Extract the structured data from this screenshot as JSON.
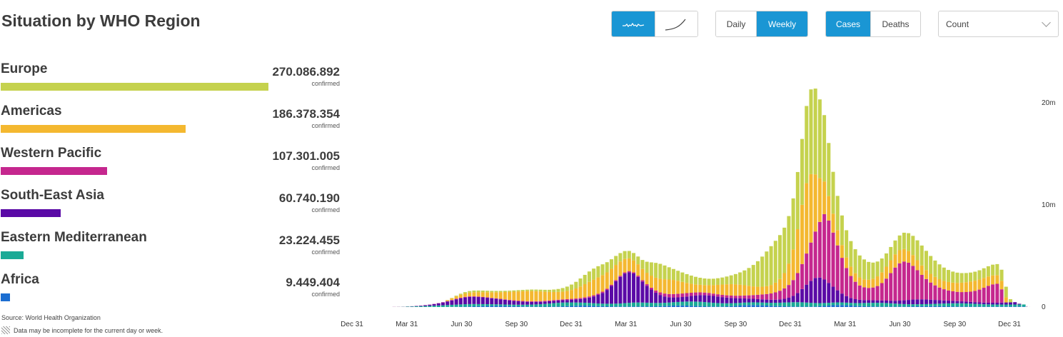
{
  "title": "Situation by WHO Region",
  "regions": [
    {
      "name": "Europe",
      "value": "270.086.892",
      "unit": "confirmed",
      "color": "#c5d24e"
    },
    {
      "name": "Americas",
      "value": "186.378.354",
      "unit": "confirmed",
      "color": "#f4b830"
    },
    {
      "name": "Western Pacific",
      "value": "107.301.005",
      "unit": "confirmed",
      "color": "#c5278e"
    },
    {
      "name": "South-East Asia",
      "value": "60.740.190",
      "unit": "confirmed",
      "color": "#5a0aa6"
    },
    {
      "name": "Eastern Mediterranean",
      "value": "23.224.455",
      "unit": "confirmed",
      "color": "#1aaa96"
    },
    {
      "name": "Africa",
      "value": "9.449.404",
      "unit": "confirmed",
      "color": "#1c6ed1"
    }
  ],
  "footer": {
    "source": "Source: World Health Organization",
    "note": "Data may be incomplete for the current day or week."
  },
  "controls": {
    "chart_style": {
      "options": [
        "line-icon",
        "cumulative-curve-icon"
      ],
      "selected": "line-icon"
    },
    "interval": {
      "options": [
        "Daily",
        "Weekly"
      ],
      "selected": "Weekly"
    },
    "measure": {
      "options": [
        "Cases",
        "Deaths"
      ],
      "selected": "Cases"
    },
    "scale": {
      "selected": "Count"
    }
  },
  "chart_data": {
    "type": "bar",
    "stacked": true,
    "x_ticks": [
      "Dec 31",
      "Mar 31",
      "Jun 30",
      "Sep 30",
      "Dec 31",
      "Mar 31",
      "Jun 30",
      "Sep 30",
      "Dec 31",
      "Mar 31",
      "Jun 30",
      "Sep 30",
      "Dec 31"
    ],
    "y_ticks": [
      "0",
      "10m",
      "20m"
    ],
    "ylim": [
      0,
      23000000
    ],
    "y_axis_position": "right",
    "series": [
      {
        "name": "Africa",
        "color": "#1c6ed1",
        "values": [
          0,
          0,
          0,
          0,
          0,
          0,
          0,
          0,
          0,
          0,
          0,
          0,
          0,
          0,
          0,
          0,
          0,
          0,
          0,
          0,
          9000,
          15000,
          21000,
          30000,
          42000,
          56000,
          70000,
          82000,
          95000,
          105000,
          110000,
          110000,
          108000,
          100000,
          88000,
          78000,
          68000,
          58000,
          50000,
          45000,
          40000,
          37000,
          35000,
          37000,
          44000,
          55000,
          68000,
          85000,
          105000,
          122000,
          135000,
          138000,
          130000,
          110000,
          92000,
          80000,
          70000,
          62000,
          56000,
          52000,
          50000,
          52000,
          55000,
          58000,
          60000,
          62000,
          64000,
          68000,
          80000,
          100000,
          120000,
          140000,
          150000,
          150000,
          140000,
          120000,
          100000,
          85000,
          70000,
          58000,
          50000,
          48000,
          52000,
          65000,
          85000,
          110000,
          140000,
          170000,
          190000,
          195000,
          185000,
          165000,
          140000,
          115000,
          95000,
          80000,
          70000,
          60000,
          52000,
          46000,
          43000,
          42000,
          45000,
          55000,
          75000,
          105000,
          140000,
          175000,
          195000,
          190000,
          170000,
          140000,
          110000,
          90000,
          75000,
          65000,
          58000,
          52000,
          48000,
          45000,
          44000,
          45000,
          48000,
          52000,
          58000,
          65000,
          72000,
          78000,
          82000,
          84000,
          82000,
          78000,
          72000,
          66000,
          60000,
          55000,
          52000,
          50000,
          48000,
          47000,
          46000,
          46000,
          47000,
          48000,
          50000,
          52000,
          54000,
          55000,
          54000,
          52000,
          48000,
          20000
        ]
      },
      {
        "name": "Eastern Mediterranean",
        "color": "#1aaa96",
        "values": [
          0,
          0,
          0,
          0,
          0,
          0,
          0,
          0,
          5000,
          10000,
          20000,
          38000,
          52000,
          68000,
          82000,
          98000,
          115000,
          130000,
          150000,
          170000,
          188000,
          200000,
          215000,
          225000,
          232000,
          230000,
          220000,
          205000,
          190000,
          175000,
          162000,
          155000,
          150000,
          148000,
          150000,
          152000,
          158000,
          168000,
          180000,
          196000,
          215000,
          240000,
          270000,
          302000,
          335000,
          360000,
          370000,
          365000,
          345000,
          320000,
          300000,
          285000,
          272000,
          262000,
          255000,
          252000,
          252000,
          260000,
          275000,
          300000,
          330000,
          360000,
          380000,
          385000,
          378000,
          362000,
          345000,
          330000,
          320000,
          315000,
          318000,
          328000,
          345000,
          370000,
          398000,
          420000,
          432000,
          430000,
          415000,
          392000,
          365000,
          340000,
          318000,
          300000,
          288000,
          278000,
          272000,
          268000,
          265000,
          265000,
          268000,
          275000,
          285000,
          300000,
          320000,
          345000,
          372000,
          398000,
          418000,
          425000,
          418000,
          398000,
          370000,
          340000,
          310000,
          290000,
          275000,
          265000,
          260000,
          258000,
          260000,
          268000,
          280000,
          298000,
          320000,
          342000,
          358000,
          365000,
          360000,
          345000,
          320000,
          290000,
          260000,
          235000,
          215000,
          205000,
          200000,
          200000,
          205000,
          215000,
          230000,
          250000,
          270000,
          290000,
          305000,
          312000,
          310000,
          300000,
          285000,
          265000,
          245000,
          225000,
          210000,
          200000,
          195000,
          192000,
          190000,
          190000,
          192000,
          196000,
          200000,
          60000
        ]
      },
      {
        "name": "South-East Asia",
        "color": "#5a0aa6",
        "values": [
          0,
          0,
          0,
          0,
          0,
          0,
          0,
          0,
          0,
          0,
          0,
          6000,
          16000,
          30000,
          50000,
          75000,
          110000,
          155000,
          210000,
          275000,
          350000,
          435000,
          525000,
          605000,
          665000,
          700000,
          705000,
          690000,
          660000,
          625000,
          585000,
          545000,
          500000,
          455000,
          410000,
          370000,
          335000,
          305000,
          280000,
          260000,
          245000,
          235000,
          228000,
          222000,
          220000,
          220000,
          225000,
          235000,
          255000,
          290000,
          345000,
          420000,
          520000,
          660000,
          840000,
          1050000,
          1350000,
          1750000,
          2200000,
          2600000,
          2900000,
          3000000,
          2850000,
          2500000,
          2050000,
          1650000,
          1300000,
          1000000,
          780000,
          620000,
          520000,
          470000,
          450000,
          460000,
          490000,
          540000,
          600000,
          650000,
          680000,
          690000,
          670000,
          640000,
          600000,
          560000,
          520000,
          480000,
          440000,
          400000,
          370000,
          345000,
          325000,
          310000,
          300000,
          295000,
          300000,
          320000,
          360000,
          450000,
          620000,
          900000,
          1300000,
          1750000,
          2150000,
          2450000,
          2500000,
          2300000,
          1950000,
          1550000,
          1180000,
          870000,
          640000,
          480000,
          380000,
          320000,
          285000,
          260000,
          245000,
          238000,
          235000,
          240000,
          255000,
          280000,
          320000,
          370000,
          420000,
          460000,
          480000,
          475000,
          455000,
          420000,
          380000,
          340000,
          300000,
          265000,
          235000,
          210000,
          192000,
          180000,
          172000,
          168000,
          166000,
          165000,
          166000,
          170000,
          178000,
          190000,
          205000,
          220000,
          230000,
          70000
        ]
      },
      {
        "name": "Western Pacific",
        "color": "#c5278e",
        "values": [
          0,
          0,
          0,
          0,
          0,
          0,
          0,
          0,
          10000,
          10000,
          10000,
          10000,
          10000,
          12000,
          14000,
          16000,
          18000,
          22000,
          26000,
          30000,
          35000,
          40000,
          45000,
          50000,
          55000,
          58000,
          58000,
          55000,
          50000,
          45000,
          42000,
          42000,
          45000,
          50000,
          55000,
          60000,
          62000,
          62000,
          62000,
          65000,
          68000,
          72000,
          75000,
          78000,
          80000,
          82000,
          85000,
          90000,
          95000,
          100000,
          105000,
          110000,
          115000,
          118000,
          120000,
          120000,
          118000,
          115000,
          112000,
          110000,
          108000,
          110000,
          115000,
          125000,
          140000,
          160000,
          185000,
          215000,
          250000,
          285000,
          315000,
          335000,
          345000,
          345000,
          335000,
          318000,
          295000,
          272000,
          252000,
          238000,
          228000,
          222000,
          220000,
          222000,
          228000,
          240000,
          258000,
          285000,
          320000,
          365000,
          420000,
          480000,
          545000,
          620000,
          720000,
          850000,
          1020000,
          1250000,
          1550000,
          1950000,
          2450000,
          3050000,
          3750000,
          4550000,
          5450000,
          6400000,
          6100000,
          5300000,
          4400000,
          3500000,
          2750000,
          2150000,
          1700000,
          1400000,
          1250000,
          1200000,
          1250000,
          1400000,
          1700000,
          2150000,
          2700000,
          3250000,
          3650000,
          3800000,
          3650000,
          3300000,
          2850000,
          2400000,
          2000000,
          1680000,
          1430000,
          1240000,
          1100000,
          1000000,
          940000,
          910000,
          910000,
          940000,
          1000000,
          1100000,
          1250000,
          1450000,
          1650000,
          1800000,
          1850000,
          1300000
        ]
      },
      {
        "name": "Americas",
        "color": "#f4b830",
        "values": [
          0,
          0,
          0,
          0,
          0,
          0,
          0,
          0,
          0,
          0,
          0,
          0,
          0,
          0,
          0,
          0,
          0,
          0,
          0,
          0,
          90000,
          165000,
          235000,
          290000,
          335000,
          370000,
          400000,
          430000,
          465000,
          505000,
          550000,
          600000,
          655000,
          715000,
          780000,
          845000,
          905000,
          955000,
          990000,
          1000000,
          985000,
          945000,
          890000,
          835000,
          790000,
          760000,
          760000,
          795000,
          870000,
          985000,
          1130000,
          1285000,
          1425000,
          1535000,
          1600000,
          1620000,
          1600000,
          1550000,
          1480000,
          1400000,
          1320000,
          1240000,
          1170000,
          1120000,
          1100000,
          1120000,
          1180000,
          1260000,
          1340000,
          1400000,
          1420000,
          1380000,
          1280000,
          1140000,
          1000000,
          880000,
          790000,
          740000,
          730000,
          760000,
          830000,
          920000,
          1010000,
          1080000,
          1120000,
          1120000,
          1080000,
          1010000,
          930000,
          850000,
          790000,
          760000,
          770000,
          830000,
          950000,
          1150000,
          1500000,
          2100000,
          3000000,
          4300000,
          5800000,
          6900000,
          6700000,
          5600000,
          4300000,
          3200000,
          2400000,
          1850000,
          1500000,
          1250000,
          1050000,
          920000,
          840000,
          790000,
          780000,
          800000,
          860000,
          950000,
          1060000,
          1170000,
          1260000,
          1300000,
          1280000,
          1220000,
          1140000,
          1060000,
          980000,
          920000,
          880000,
          850000,
          830000,
          820000,
          820000,
          830000,
          850000,
          880000,
          920000,
          960000,
          990000,
          1000000,
          990000,
          960000,
          920000,
          880000,
          850000,
          840000,
          500000
        ]
      },
      {
        "name": "Europe",
        "color": "#c5d24e",
        "values": [
          0,
          0,
          0,
          0,
          0,
          0,
          0,
          0,
          0,
          0,
          0,
          0,
          0,
          0,
          0,
          0,
          0,
          0,
          0,
          0,
          11000,
          35000,
          68000,
          102000,
          130000,
          150000,
          160000,
          158000,
          150000,
          140000,
          131000,
          125000,
          120000,
          118000,
          118000,
          120000,
          123000,
          128000,
          135000,
          144000,
          155000,
          170000,
          188000,
          212000,
          245000,
          290000,
          350000,
          430000,
          530000,
          650000,
          780000,
          910000,
          1020000,
          1080000,
          1090000,
          1060000,
          1000000,
          940000,
          880000,
          820000,
          770000,
          730000,
          720000,
          760000,
          880000,
          1080000,
          1300000,
          1450000,
          1460000,
          1350000,
          1200000,
          1070000,
          980000,
          920000,
          860000,
          800000,
          740000,
          690000,
          650000,
          630000,
          630000,
          650000,
          690000,
          760000,
          860000,
          1000000,
          1200000,
          1450000,
          1750000,
          2100000,
          2500000,
          2950000,
          3400000,
          3800000,
          4100000,
          4300000,
          4450000,
          4650000,
          5000000,
          5600000,
          6450000,
          7550000,
          8300000,
          8400000,
          7700000,
          6500000,
          5200000,
          4100000,
          3350000,
          2900000,
          2650000,
          2500000,
          2350000,
          2150000,
          1950000,
          1750000,
          1580000,
          1450000,
          1350000,
          1300000,
          1300000,
          1350000,
          1450000,
          1600000,
          1750000,
          1880000,
          1950000,
          1950000,
          1880000,
          1750000,
          1600000,
          1450000,
          1300000,
          1180000,
          1080000,
          1000000,
          940000,
          900000,
          880000,
          880000,
          900000,
          950000,
          1000000,
          1050000,
          1080000,
          1080000,
          1040000,
          300000
        ]
      }
    ]
  }
}
